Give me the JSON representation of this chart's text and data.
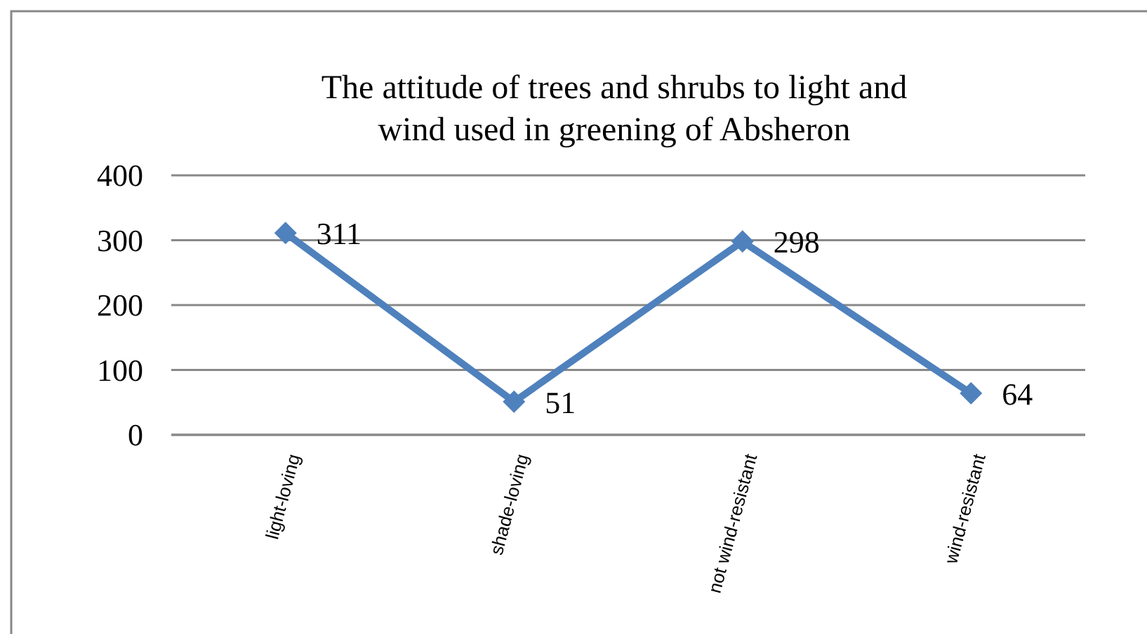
{
  "chart_data": {
    "type": "line",
    "title": "The attitude of trees and shrubs to light and wind used in greening of Absheron",
    "categories": [
      "light-loving",
      "shade-loving",
      "not wind-resistant",
      "wind-resistant"
    ],
    "series": [
      {
        "color": "#4f81bd",
        "values": [
          311,
          51,
          298,
          64
        ]
      }
    ],
    "ylim": [
      0,
      400
    ],
    "yticks": [
      0,
      100,
      200,
      300,
      400
    ],
    "grid": "y",
    "marker": "diamond",
    "line_style": "solid",
    "data_labels": true
  }
}
